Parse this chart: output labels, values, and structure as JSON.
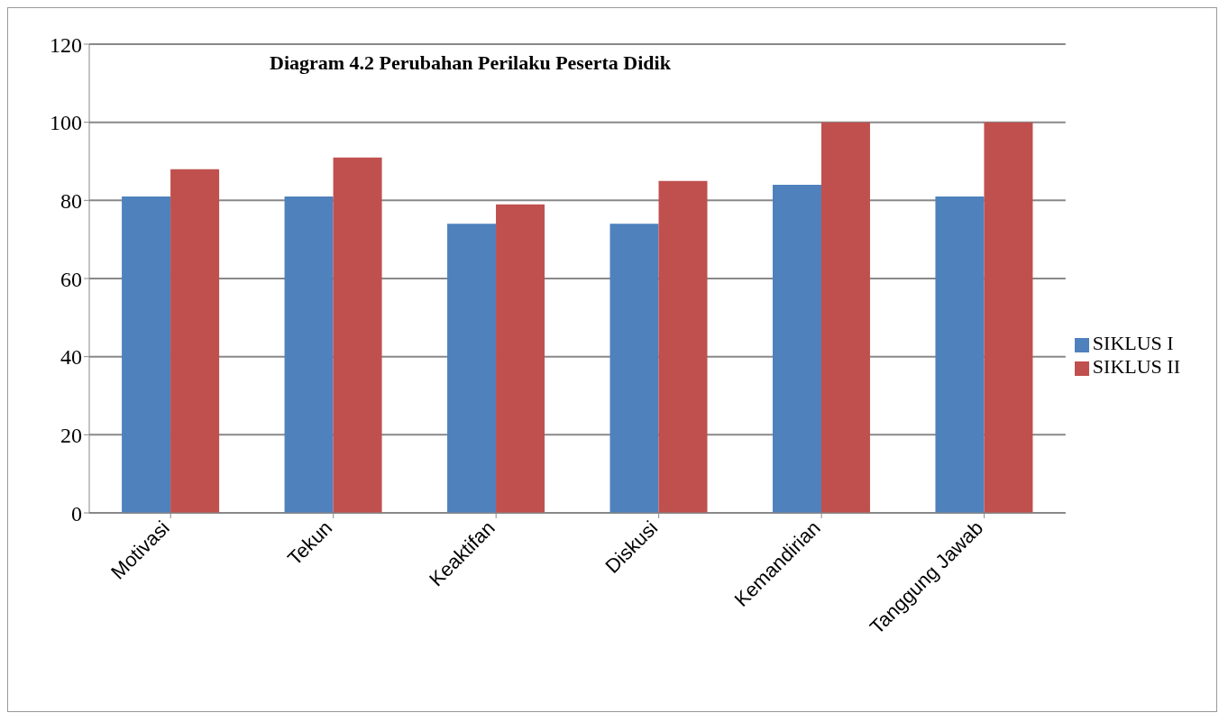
{
  "chart_data": {
    "type": "bar",
    "title": "Diagram 4.2 Perubahan Perilaku Peserta Didik",
    "categories": [
      "Motivasi",
      "Tekun",
      "Keaktifan",
      "Diskusi",
      "Kemandirian",
      "Tanggung Jawab"
    ],
    "series": [
      {
        "name": "SIKLUS I",
        "color": "#4f81bd",
        "values": [
          81,
          81,
          74,
          74,
          84,
          81
        ]
      },
      {
        "name": "SIKLUS II",
        "color": "#c0504d",
        "values": [
          88,
          91,
          79,
          85,
          100,
          100
        ]
      }
    ],
    "ylim": [
      0,
      120
    ],
    "yticks": [
      0,
      20,
      40,
      60,
      80,
      100,
      120
    ],
    "grid": "y",
    "legend": "right"
  }
}
